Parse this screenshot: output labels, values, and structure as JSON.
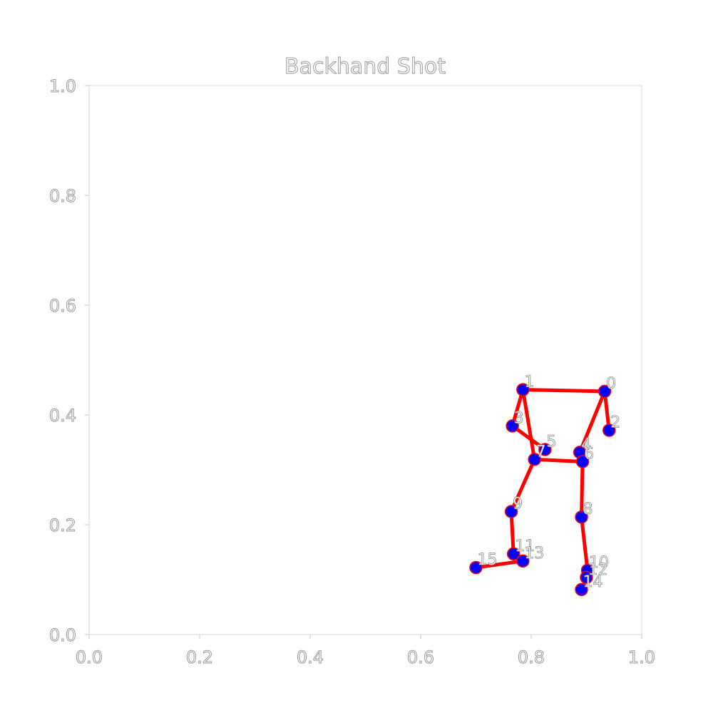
{
  "chart_data": {
    "type": "scatter",
    "title": "Backhand Shot",
    "xlabel": "",
    "ylabel": "",
    "xlim": [
      0.0,
      1.0
    ],
    "ylim": [
      0.0,
      1.0
    ],
    "grid": false,
    "xticks": [
      "0.0",
      "0.2",
      "0.4",
      "0.6",
      "0.8",
      "1.0"
    ],
    "yticks": [
      "0.0",
      "0.2",
      "0.4",
      "0.6",
      "0.8",
      "1.0"
    ],
    "colors": {
      "line": "#ff0000",
      "point": "#0000ff"
    },
    "points": [
      {
        "label": "0",
        "x": 0.933,
        "y": 0.443
      },
      {
        "label": "1",
        "x": 0.785,
        "y": 0.446
      },
      {
        "label": "2",
        "x": 0.941,
        "y": 0.372
      },
      {
        "label": "3",
        "x": 0.766,
        "y": 0.38
      },
      {
        "label": "4",
        "x": 0.888,
        "y": 0.332
      },
      {
        "label": "5",
        "x": 0.825,
        "y": 0.337
      },
      {
        "label": "6",
        "x": 0.893,
        "y": 0.315
      },
      {
        "label": "7",
        "x": 0.806,
        "y": 0.319
      },
      {
        "label": "8",
        "x": 0.891,
        "y": 0.214
      },
      {
        "label": "9",
        "x": 0.764,
        "y": 0.224
      },
      {
        "label": "10",
        "x": 0.902,
        "y": 0.117
      },
      {
        "label": "11",
        "x": 0.768,
        "y": 0.147
      },
      {
        "label": "12",
        "x": 0.9,
        "y": 0.104
      },
      {
        "label": "13",
        "x": 0.785,
        "y": 0.134
      },
      {
        "label": "14",
        "x": 0.891,
        "y": 0.082
      },
      {
        "label": "15",
        "x": 0.7,
        "y": 0.122
      }
    ],
    "edges": [
      [
        0,
        1
      ],
      [
        0,
        2
      ],
      [
        0,
        4
      ],
      [
        1,
        3
      ],
      [
        1,
        7
      ],
      [
        3,
        5
      ],
      [
        6,
        7
      ],
      [
        6,
        8
      ],
      [
        7,
        9
      ],
      [
        8,
        10
      ],
      [
        10,
        12
      ],
      [
        12,
        14
      ],
      [
        9,
        11
      ],
      [
        11,
        13
      ],
      [
        13,
        15
      ]
    ]
  }
}
